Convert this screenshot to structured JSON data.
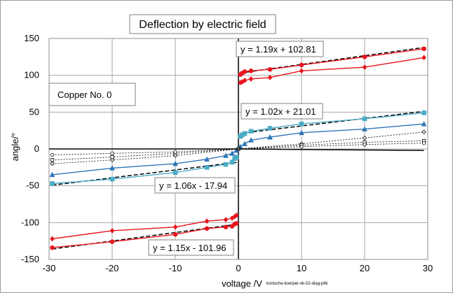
{
  "chart_data": {
    "type": "scatter",
    "title": "Deflection by electric field",
    "xlabel": "voltage /V",
    "ylabel": "angle/°",
    "xlim": [
      -30,
      30
    ],
    "ylim": [
      -150,
      150
    ],
    "xticks": [
      "-30",
      "-20",
      "-10",
      "0",
      "10",
      "20",
      "30"
    ],
    "yticks": [
      "150",
      "100",
      "50",
      "0",
      "-50",
      "-100",
      "-150"
    ],
    "grid": true,
    "annotation": "Copper No. 0",
    "footnote": "konische-koerper-xk-02-diag-pltk",
    "series": [
      {
        "color": "#e8141e",
        "marker": "circle",
        "line": "solid",
        "x": [
          0.3,
          0.6,
          1,
          2,
          5,
          10,
          20,
          29.4
        ],
        "y": [
          101,
          103,
          105,
          106,
          108,
          114,
          125,
          136
        ]
      },
      {
        "color": "#e8141e",
        "marker": "diamond",
        "line": "solid",
        "x": [
          0.3,
          0.6,
          1,
          2,
          5,
          10,
          20,
          29.4
        ],
        "y": [
          90,
          91,
          93,
          95,
          97,
          106,
          111,
          124
        ]
      },
      {
        "color": "#e8141e",
        "marker": "circle",
        "line": "solid",
        "x": [
          -29.5,
          -20,
          -10,
          -5,
          -2,
          -1,
          -0.6,
          -0.3
        ],
        "y": [
          -134,
          -126,
          -116,
          -108,
          -106,
          -105,
          -102,
          -101
        ]
      },
      {
        "color": "#e8141e",
        "marker": "diamond",
        "line": "solid",
        "x": [
          -29.5,
          -20,
          -10,
          -5,
          -2,
          -1,
          -0.6,
          -0.3
        ],
        "y": [
          -122,
          -111,
          -106,
          -98,
          -96,
          -94,
          -92,
          -90
        ]
      },
      {
        "color": "#4bacc6",
        "marker": "square",
        "line": "solid",
        "x": [
          0.3,
          0.6,
          1,
          2,
          5,
          10,
          20,
          29.4
        ],
        "y": [
          17,
          19,
          21,
          24,
          28,
          34,
          41,
          49
        ]
      },
      {
        "color": "#4bacc6",
        "marker": "square",
        "line": "solid",
        "x": [
          -29.5,
          -20,
          -10,
          -5,
          -2,
          -1,
          -0.6,
          -0.3
        ],
        "y": [
          -47,
          -41,
          -32,
          -25,
          -21,
          -18,
          -13,
          -11
        ]
      },
      {
        "color": "#2e75b6",
        "marker": "triangle",
        "line": "solid",
        "x": [
          -29.5,
          -20,
          -10,
          -5,
          -2,
          -1,
          -0.3,
          0.3,
          1,
          2,
          5,
          10,
          20,
          29.4
        ],
        "y": [
          -35,
          -26,
          -20,
          -14,
          -9,
          -6,
          -2,
          3,
          7,
          12,
          16,
          22,
          27,
          34
        ]
      },
      {
        "color": "#000000",
        "marker": "open-diamond",
        "line": "dotted",
        "x": [
          -29.5,
          -20,
          -10,
          0,
          10,
          20,
          29.4
        ],
        "y": [
          -20,
          -15,
          -9,
          0,
          7,
          15,
          23
        ]
      },
      {
        "color": "#000000",
        "marker": "open-square",
        "line": "dotted",
        "x": [
          -29.5,
          -20,
          -10,
          0,
          10,
          20,
          29.4
        ],
        "y": [
          -15,
          -11,
          -6,
          0,
          5,
          9,
          11
        ]
      },
      {
        "color": "#000000",
        "marker": "open-circle",
        "line": "dotted",
        "x": [
          -29.5,
          -20,
          -10,
          0,
          10,
          20,
          29.4
        ],
        "y": [
          -8,
          -6,
          -4,
          0,
          3,
          6,
          8
        ]
      },
      {
        "color": "#000000",
        "marker": "none",
        "line": "solid",
        "x": [
          -30,
          0,
          29.4
        ],
        "y": [
          0,
          0,
          -2
        ]
      }
    ],
    "trendlines": [
      {
        "label": "y = 1.19x + 102.81",
        "slope": 1.19,
        "intercept": 102.81,
        "x_range": [
          0.3,
          29.4
        ]
      },
      {
        "label": "y = 1.02x + 21.01",
        "slope": 1.02,
        "intercept": 21.01,
        "x_range": [
          0.3,
          29.4
        ]
      },
      {
        "label": "y = 1.06x - 17.94",
        "slope": 1.06,
        "intercept": -17.94,
        "x_range": [
          -29.5,
          -0.3
        ]
      },
      {
        "label": "y = 1.15x - 101.96",
        "slope": 1.15,
        "intercept": -101.96,
        "x_range": [
          -29.5,
          -0.3
        ]
      }
    ]
  }
}
